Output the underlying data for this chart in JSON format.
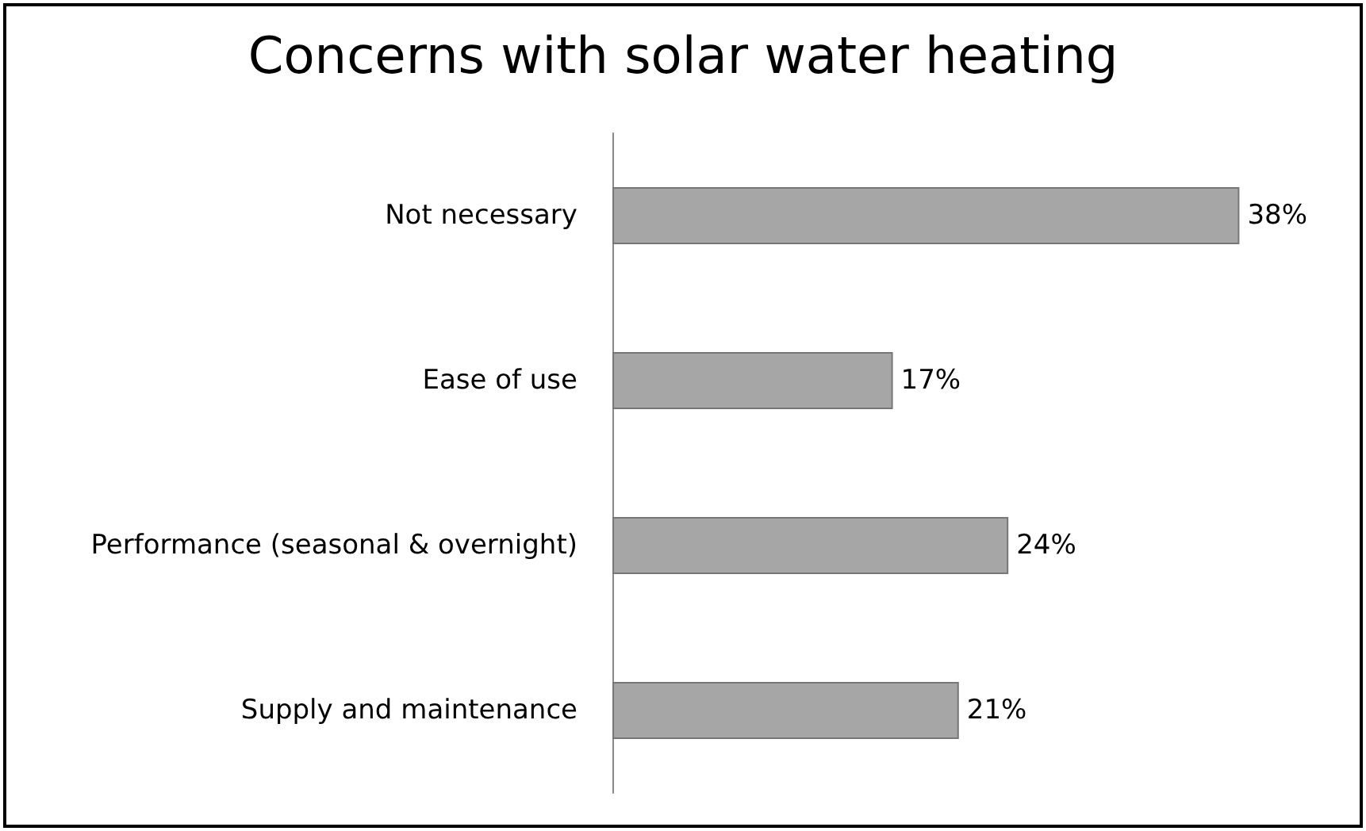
{
  "chart_data": {
    "type": "bar",
    "orientation": "horizontal",
    "title": "Concerns with solar water heating",
    "categories": [
      "Not necessary",
      "Ease of use",
      "Performance (seasonal & overnight)",
      "Supply and maintenance"
    ],
    "values": [
      38,
      17,
      24,
      21
    ],
    "value_labels": [
      "38%",
      "17%",
      "24%",
      "21%"
    ],
    "color": "#a6a6a6"
  }
}
